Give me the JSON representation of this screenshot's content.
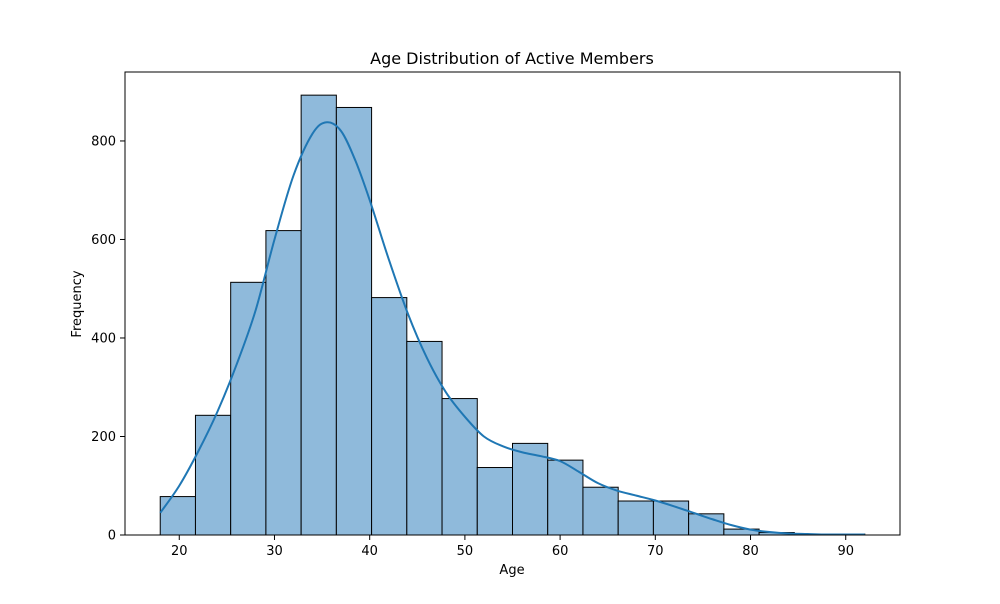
{
  "chart_data": {
    "type": "bar",
    "subtype": "histogram-with-kde",
    "title": "Age Distribution of Active Members",
    "xlabel": "Age",
    "ylabel": "Frequency",
    "xlim": [
      14.3,
      95.7
    ],
    "ylim": [
      0,
      940
    ],
    "xticks": [
      20,
      30,
      40,
      50,
      60,
      70,
      80,
      90
    ],
    "yticks": [
      0,
      200,
      400,
      600,
      800
    ],
    "grid": false,
    "legend": "none",
    "bins": [
      {
        "x0": 18.0,
        "x1": 21.7,
        "count": 78
      },
      {
        "x0": 21.7,
        "x1": 25.4,
        "count": 243
      },
      {
        "x0": 25.4,
        "x1": 29.1,
        "count": 513
      },
      {
        "x0": 29.1,
        "x1": 32.8,
        "count": 618
      },
      {
        "x0": 32.8,
        "x1": 36.5,
        "count": 893
      },
      {
        "x0": 36.5,
        "x1": 40.2,
        "count": 868
      },
      {
        "x0": 40.2,
        "x1": 43.9,
        "count": 482
      },
      {
        "x0": 43.9,
        "x1": 47.6,
        "count": 393
      },
      {
        "x0": 47.6,
        "x1": 51.3,
        "count": 277
      },
      {
        "x0": 51.3,
        "x1": 55.0,
        "count": 137
      },
      {
        "x0": 55.0,
        "x1": 58.7,
        "count": 186
      },
      {
        "x0": 58.7,
        "x1": 62.4,
        "count": 152
      },
      {
        "x0": 62.4,
        "x1": 66.1,
        "count": 97
      },
      {
        "x0": 66.1,
        "x1": 69.8,
        "count": 69
      },
      {
        "x0": 69.8,
        "x1": 73.5,
        "count": 69
      },
      {
        "x0": 73.5,
        "x1": 77.2,
        "count": 43
      },
      {
        "x0": 77.2,
        "x1": 80.9,
        "count": 12
      },
      {
        "x0": 80.9,
        "x1": 84.6,
        "count": 5
      },
      {
        "x0": 84.6,
        "x1": 88.3,
        "count": 2
      },
      {
        "x0": 88.3,
        "x1": 92.0,
        "count": 2
      }
    ],
    "kde": {
      "x": [
        18,
        20,
        22,
        24,
        26,
        28,
        30,
        32,
        34,
        35.5,
        37,
        38.5,
        40,
        42,
        44,
        46,
        48,
        50,
        52,
        54,
        56,
        58,
        60,
        62,
        64,
        66,
        68,
        70,
        72,
        74,
        76,
        78,
        80,
        82,
        84,
        86,
        88,
        90,
        92
      ],
      "y": [
        45,
        100,
        170,
        250,
        345,
        455,
        600,
        730,
        815,
        838,
        820,
        760,
        680,
        560,
        450,
        360,
        290,
        240,
        200,
        180,
        168,
        160,
        150,
        128,
        105,
        90,
        80,
        70,
        58,
        45,
        32,
        20,
        11,
        6,
        3,
        2,
        1,
        1,
        1
      ]
    },
    "colors": {
      "bar_fill": "#8fbadb",
      "bar_edge": "#000000",
      "kde_line": "#1f77b4",
      "axes": "#000000"
    }
  }
}
